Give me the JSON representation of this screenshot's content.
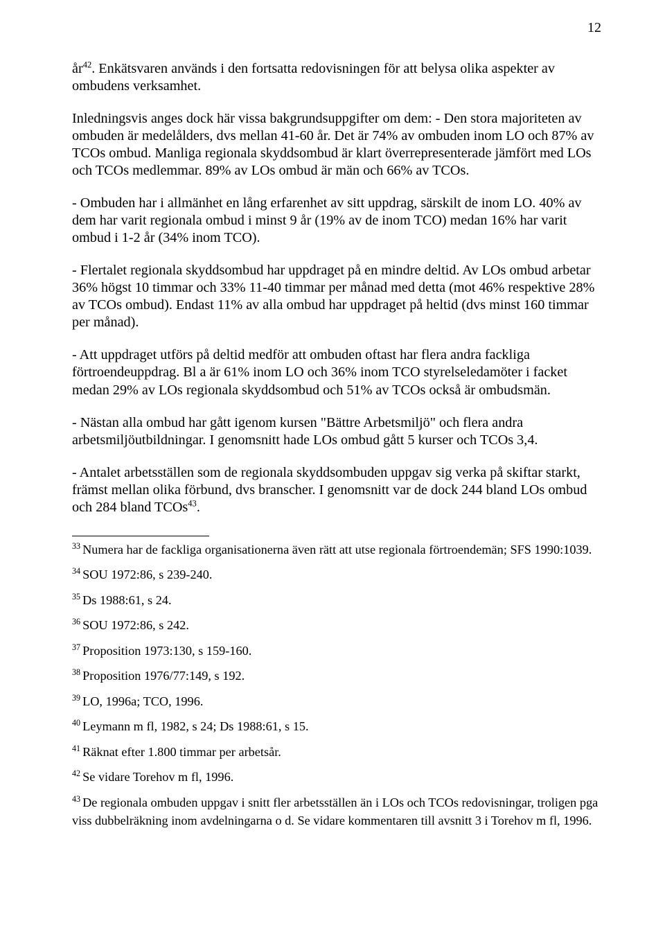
{
  "page_number": "12",
  "paragraphs": [
    "år⁴². Enkätsvaren används i den fortsatta redovisningen för att belysa olika aspekter av ombudens verksamhet.",
    "Inledningsvis anges dock här vissa bakgrundsuppgifter om dem:\n- Den stora majoriteten av ombuden är medelålders, dvs mellan 41-60 år. Det är 74% av ombuden inom LO och 87% av TCOs ombud. Manliga regionala skyddsombud är klart överrepresenterade jämfört med LOs och TCOs medlemmar. 89% av LOs ombud är män och 66% av TCOs.",
    "- Ombuden har i allmänhet en lång erfarenhet av sitt uppdrag, särskilt de inom LO. 40% av dem har varit regionala ombud i minst 9 år (19% av de inom TCO) medan 16% har varit ombud i 1-2 år (34% inom TCO).",
    "- Flertalet regionala skyddsombud har uppdraget på en mindre deltid. Av LOs ombud arbetar 36% högst 10 timmar och 33% 11-40 timmar per månad med detta (mot 46% respektive 28% av TCOs ombud). Endast 11% av alla ombud har uppdraget på heltid (dvs minst 160 timmar per månad).",
    "- Att uppdraget utförs på deltid medför att ombuden oftast har flera andra fackliga förtroendeuppdrag. Bl a är 61% inom LO och 36% inom TCO styrelseledamöter i facket medan 29% av LOs regionala skyddsombud och 51% av TCOs också är ombudsmän.",
    "- Nästan alla ombud har gått igenom kursen \"Bättre Arbetsmiljö\" och flera andra arbetsmiljöutbildningar. I genomsnitt hade LOs ombud gått 5 kurser och TCOs 3,4.",
    "- Antalet arbetsställen som de regionala skyddsombuden uppgav sig verka på skiftar starkt, främst mellan olika förbund, dvs branscher. I genomsnitt var de dock 244 bland LOs ombud och 284 bland TCOs⁴³."
  ],
  "footnotes": [
    {
      "num": "33",
      "text": "Numera har de fackliga organisationerna även rätt att utse regionala förtroendemän; SFS 1990:1039."
    },
    {
      "num": "34",
      "text": "SOU 1972:86, s 239-240."
    },
    {
      "num": "35",
      "text": "Ds 1988:61, s 24."
    },
    {
      "num": "36",
      "text": "SOU 1972:86, s 242."
    },
    {
      "num": "37",
      "text": "Proposition 1973:130, s 159-160."
    },
    {
      "num": "38",
      "text": "Proposition 1976/77:149, s 192."
    },
    {
      "num": "39",
      "text": "LO, 1996a; TCO, 1996."
    },
    {
      "num": "40",
      "text": "Leymann m fl, 1982, s 24; Ds 1988:61, s 15."
    },
    {
      "num": "41",
      "text": "Räknat efter 1.800 timmar per arbetsår."
    },
    {
      "num": "42",
      "text": "Se vidare Torehov m fl, 1996."
    },
    {
      "num": "43",
      "text": "De regionala ombuden uppgav i snitt fler arbetsställen än i LOs och TCOs redovisningar, troligen pga viss dubbelräkning inom avdelningarna o d. Se vidare kommentaren till avsnitt 3 i Torehov m fl, 1996."
    }
  ],
  "p0_pre": "år",
  "p0_sup": "42",
  "p0_post": ". Enkätsvaren används i den fortsatta redovisningen för att belysa olika aspekter av ombudens verksamhet.",
  "p6_pre": "- Antalet arbetsställen som de regionala skyddsombuden uppgav sig verka på skiftar starkt, främst mellan olika förbund, dvs branscher. I genomsnitt var de dock 244 bland LOs ombud och 284 bland TCOs",
  "p6_sup": "43",
  "p6_post": "."
}
